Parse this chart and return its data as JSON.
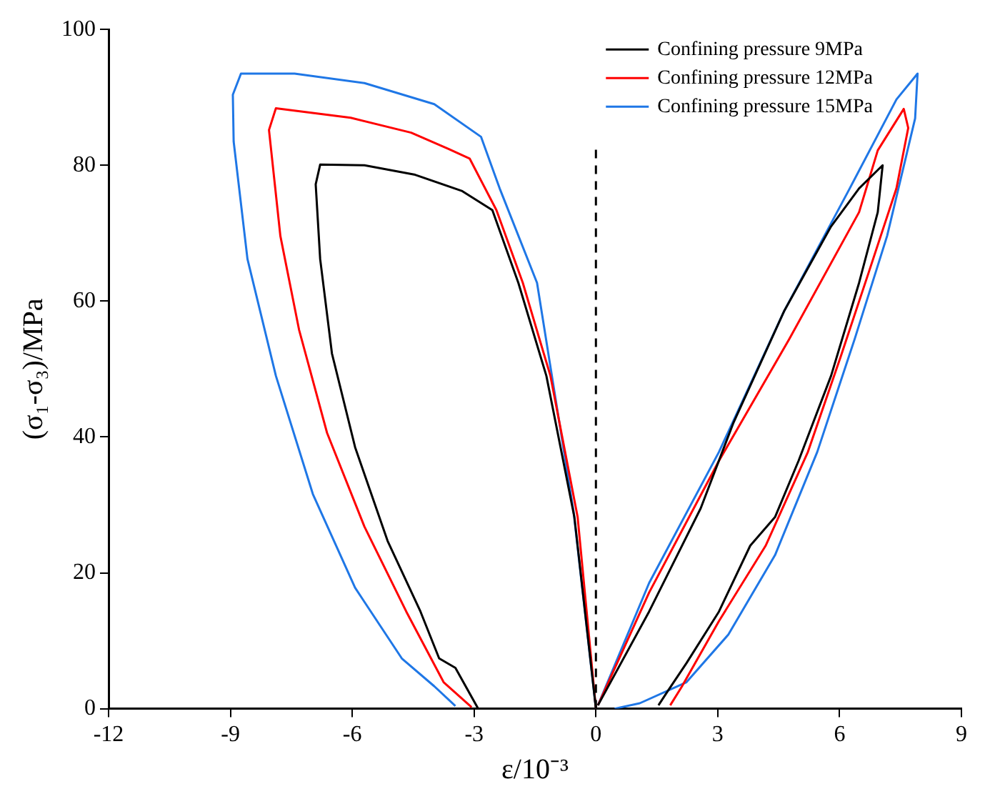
{
  "chart_data": {
    "type": "line",
    "xlabel": "ε/10⁻³",
    "ylabel": "(σ₁-σ₃)/MPa",
    "xlim": [
      -12,
      9
    ],
    "xticks": [
      -12,
      -9,
      -6,
      -3,
      0,
      3,
      6,
      9
    ],
    "ylim": [
      0,
      100
    ],
    "yticks": [
      0,
      20,
      40,
      60,
      80,
      100
    ],
    "grid": false,
    "legend": "top right",
    "marker": "none",
    "line_style": "solid",
    "ref_lines": [
      {
        "axis": "x",
        "value": 0,
        "color": "#000000",
        "line_style": "dashed"
      }
    ],
    "series": [
      {
        "name": "Confining pressure 9MPa",
        "color": "#000000",
        "x": [
          0,
          -0.53,
          -1.22,
          -1.91,
          -2.55,
          -3.29,
          -4.45,
          -5.7,
          -6.79,
          -6.9,
          -6.79,
          -6.5,
          -5.93,
          -5.13,
          -4.32,
          -3.86,
          -3.46,
          -2.9,
          null,
          0.05,
          1.31,
          2.58,
          3.38,
          4.64,
          5.79,
          6.48,
          7.06,
          6.94,
          6.48,
          5.79,
          4.99,
          4.41,
          3.8,
          3.03,
          2.23,
          1.77,
          1.54
        ],
        "values": [
          0,
          28.2,
          49,
          62.7,
          73.4,
          76.2,
          78.6,
          80,
          80.1,
          77.2,
          66.2,
          52.3,
          38.5,
          24.7,
          14.3,
          7.4,
          6,
          0,
          null,
          0.5,
          14.3,
          29.5,
          42,
          58.6,
          71,
          76.6,
          80,
          73.1,
          62.7,
          49,
          36.5,
          28.2,
          24,
          14.3,
          6.7,
          2.6,
          0.5
        ]
      },
      {
        "name": "Confining pressure 12MPa",
        "color": "#ff0000",
        "x": [
          0,
          -0.45,
          -1.12,
          -1.8,
          -2.45,
          -3.11,
          -3.63,
          -4.55,
          -6.04,
          -7.88,
          -8.05,
          -7.77,
          -7.31,
          -6.62,
          -5.7,
          -4.67,
          -3.75,
          -3.06,
          null,
          0.05,
          1.31,
          3.03,
          4.76,
          6.48,
          6.94,
          7.58,
          7.69,
          7.4,
          6.71,
          6.02,
          5.22,
          4.18,
          3.03,
          2.11,
          1.83
        ],
        "values": [
          0,
          28.2,
          49,
          62.7,
          73.4,
          81,
          82.4,
          84.8,
          87,
          88.4,
          85.2,
          69.6,
          55.8,
          40.6,
          26.8,
          14.3,
          3.9,
          0.2,
          null,
          0.5,
          17.1,
          36.5,
          54.4,
          73.1,
          82.2,
          88.3,
          85.5,
          76.6,
          64.1,
          51.7,
          37.8,
          24,
          12.9,
          3.2,
          0.5
        ]
      },
      {
        "name": "Confining pressure 15MPa",
        "color": "#1f77e6",
        "x": [
          0,
          -0.55,
          -1.45,
          -2.37,
          -2.83,
          -3.98,
          -5.7,
          -7.42,
          -8.74,
          -8.94,
          -8.92,
          -8.58,
          -7.88,
          -6.97,
          -5.93,
          -4.78,
          -3.98,
          -3.46,
          null,
          0.05,
          1.31,
          3.03,
          4.64,
          6.25,
          7.4,
          7.92,
          7.86,
          7.17,
          6.37,
          5.45,
          4.41,
          3.26,
          2.23,
          1.08,
          0.46
        ],
        "values": [
          0,
          29,
          62.7,
          76.6,
          84.2,
          89,
          92.1,
          93.5,
          93.5,
          90.4,
          83.5,
          66.2,
          49,
          31.6,
          17.8,
          7.4,
          3.3,
          0.4,
          null,
          0.5,
          18.5,
          37.8,
          58.6,
          76.6,
          89.7,
          93.5,
          86.9,
          69.6,
          54.4,
          37.8,
          22.6,
          10.9,
          3.9,
          0.8,
          0
        ]
      }
    ]
  }
}
